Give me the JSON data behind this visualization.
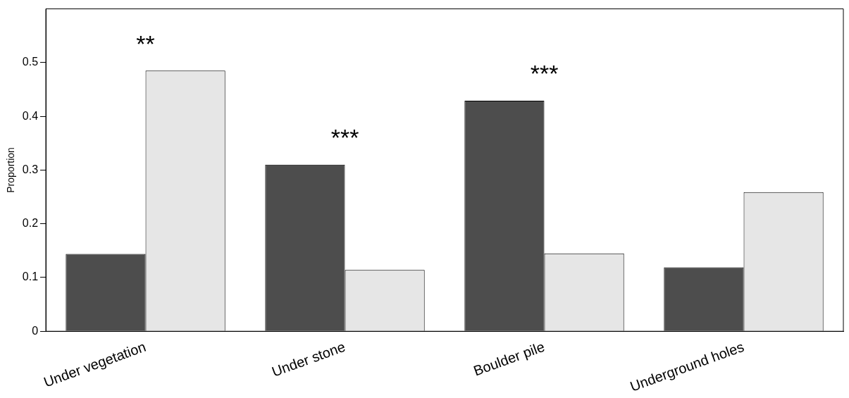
{
  "chart_data": {
    "type": "bar",
    "ylabel": "Proportion",
    "categories": [
      "Under vegetation",
      "Under stone",
      "Boulder pile",
      "Underground holes"
    ],
    "series": [
      {
        "color": "#4d4d4d",
        "values": [
          0.144,
          0.31,
          0.429,
          0.119
        ]
      },
      {
        "color": "#e6e6e6",
        "values": [
          0.485,
          0.114,
          0.145,
          0.259
        ]
      }
    ],
    "ylim": [
      0,
      0.6
    ],
    "yticks": [
      0,
      0.1,
      0.2,
      0.3,
      0.4,
      0.5
    ],
    "grid": false,
    "legend": false,
    "annotations": [
      "**",
      "***",
      "***"
    ]
  }
}
